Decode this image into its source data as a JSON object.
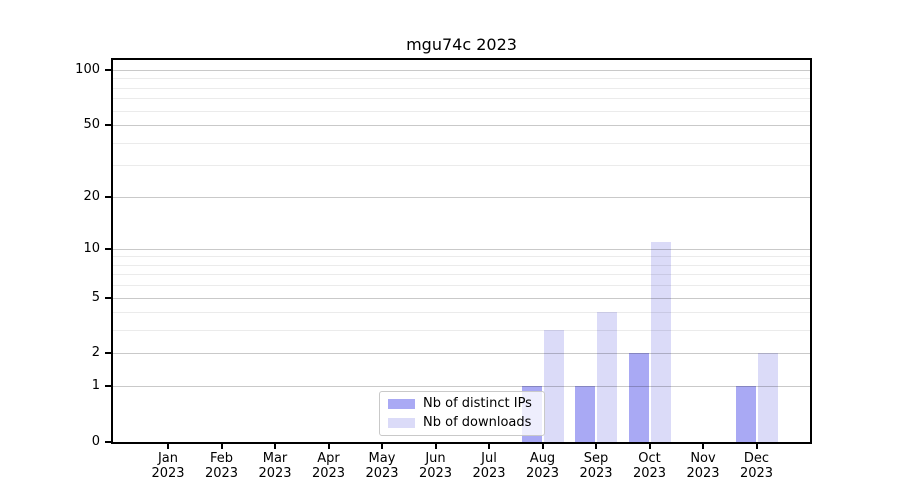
{
  "chart_data": {
    "type": "bar",
    "title": "mgu74c 2023",
    "categories": [
      "Jan 2023",
      "Feb 2023",
      "Mar 2023",
      "Apr 2023",
      "May 2023",
      "Jun 2023",
      "Jul 2023",
      "Aug 2023",
      "Sep 2023",
      "Oct 2023",
      "Nov 2023",
      "Dec 2023"
    ],
    "series": [
      {
        "name": "Nb of distinct IPs",
        "color": "#a9a9f4",
        "values": [
          0,
          0,
          0,
          0,
          0,
          0,
          0,
          1,
          1,
          2,
          0,
          1
        ]
      },
      {
        "name": "Nb of downloads",
        "color": "#dbdbf8",
        "values": [
          0,
          0,
          0,
          0,
          0,
          0,
          0,
          3,
          4,
          11,
          0,
          2
        ]
      }
    ],
    "xlabel": "",
    "ylabel": "",
    "yscale": "log1p",
    "ylim": [
      0,
      113
    ],
    "yticks": [
      0,
      1,
      2,
      5,
      10,
      20,
      50,
      100
    ],
    "ytick_labels": [
      "0",
      "1",
      "2",
      "5",
      "10",
      "20",
      "50",
      "100"
    ],
    "minor_gridlines": [
      3,
      4,
      6,
      7,
      8,
      9,
      30,
      40,
      60,
      70,
      80,
      90
    ],
    "grid": true,
    "legend_position": "lower center",
    "colors": {
      "major_grid": "#c9c9c9",
      "minor_grid": "#ebebeb",
      "spine": "#000000",
      "background": "#ffffff",
      "legend_border": "#c9c9c9"
    }
  }
}
